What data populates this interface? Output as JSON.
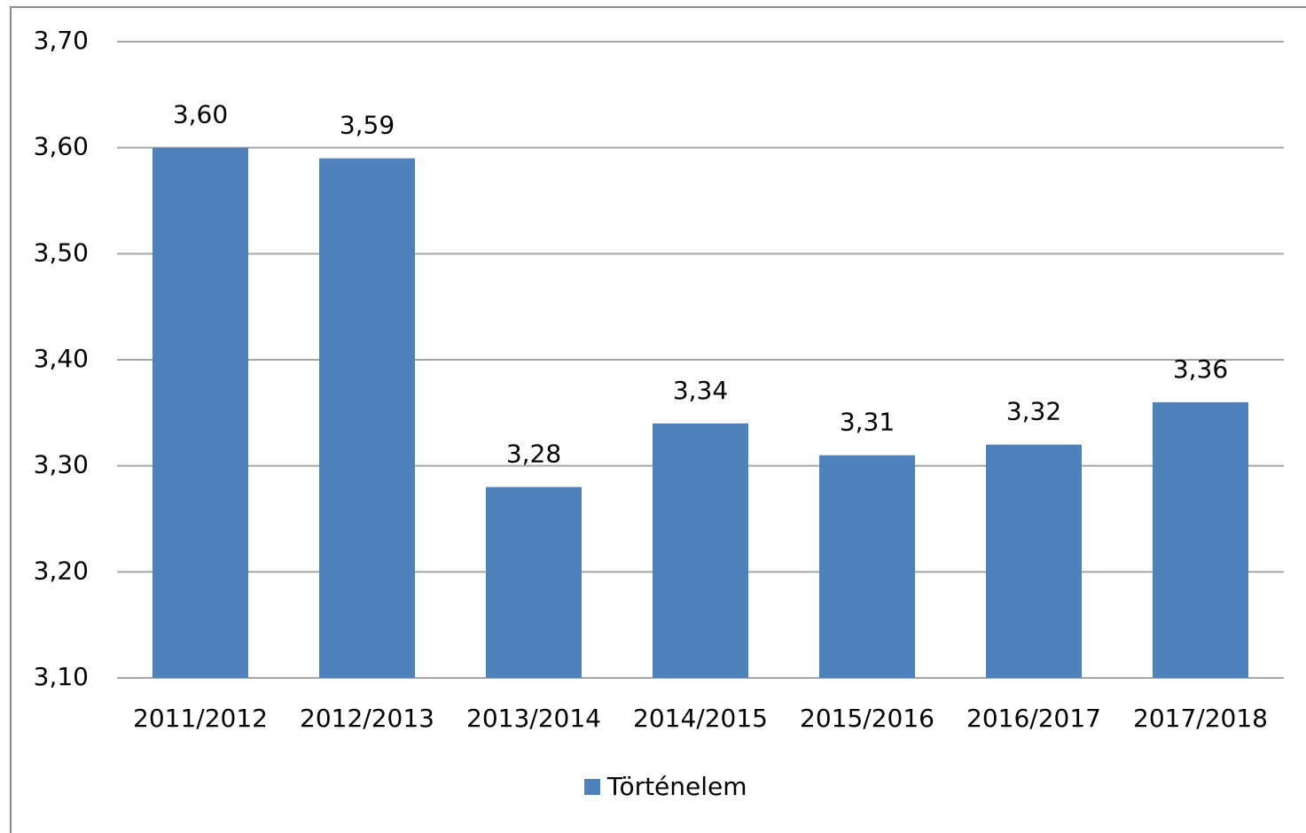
{
  "chart_data": {
    "type": "bar",
    "categories": [
      "2011/2012",
      "2012/2013",
      "2013/2014",
      "2014/2015",
      "2015/2016",
      "2016/2017",
      "2017/2018"
    ],
    "series": [
      {
        "name": "Történelem",
        "color": "#4f81bd",
        "values": [
          3.6,
          3.59,
          3.28,
          3.34,
          3.31,
          3.32,
          3.36
        ],
        "value_labels": [
          "3,60",
          "3,59",
          "3,28",
          "3,34",
          "3,31",
          "3,32",
          "3,36"
        ]
      }
    ],
    "ylim": [
      3.1,
      3.7
    ],
    "yticks": [
      {
        "value": 3.1,
        "label": "3,10"
      },
      {
        "value": 3.2,
        "label": "3,20"
      },
      {
        "value": 3.3,
        "label": "3,30"
      },
      {
        "value": 3.4,
        "label": "3,40"
      },
      {
        "value": 3.5,
        "label": "3,50"
      },
      {
        "value": 3.6,
        "label": "3,60"
      },
      {
        "value": 3.7,
        "label": "3,70"
      }
    ],
    "grid": true,
    "legend": "bottom"
  }
}
